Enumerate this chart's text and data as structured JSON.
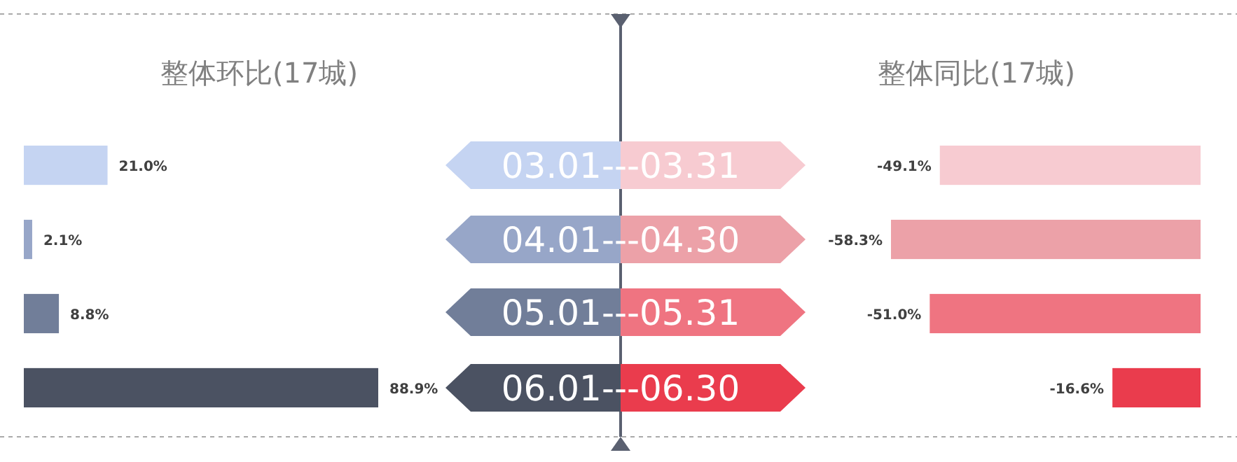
{
  "chart_data": [
    {
      "type": "bar",
      "orientation": "horizontal",
      "title": "整体环比(17城)",
      "categories": [
        "03.01---03.31",
        "04.01---04.30",
        "05.01---05.31",
        "06.01---06.30"
      ],
      "values": [
        21.0,
        2.1,
        8.8,
        88.9
      ],
      "value_labels": [
        "21.0%",
        "2.1%",
        "8.8%",
        "88.9%"
      ],
      "colors": [
        "#c5d4f2",
        "#97a6c8",
        "#717e99",
        "#4b5262"
      ]
    },
    {
      "type": "bar",
      "orientation": "horizontal",
      "title": "整体同比(17城)",
      "categories": [
        null,
        null,
        null,
        null
      ],
      "values": [
        -49.1,
        -58.3,
        -51.0,
        -16.6
      ],
      "value_labels": [
        "-49.1%",
        "-58.3%",
        "-51.0%",
        "-16.6%"
      ],
      "colors": [
        "#f7cbd1",
        "#eca1a8",
        "#ef7481",
        "#ea3c4d"
      ]
    }
  ]
}
